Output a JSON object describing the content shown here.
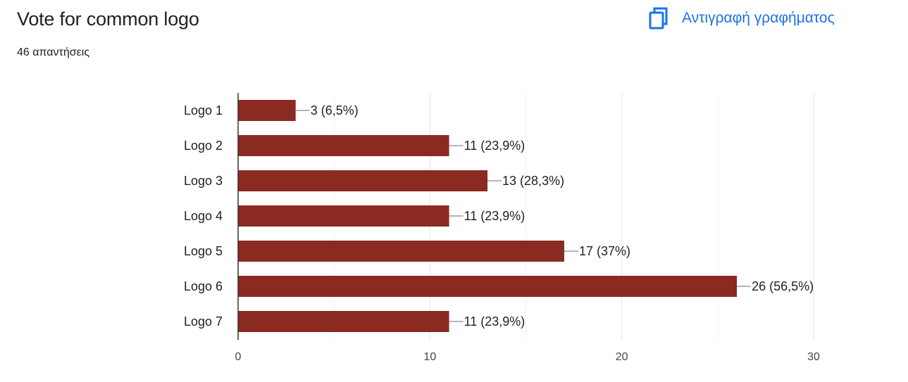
{
  "header": {
    "title": "Vote for common logo",
    "responses": "46 απαντήσεις",
    "copy_chart_label": "Αντιγραφή γραφήματος",
    "copy_icon": "copy-icon"
  },
  "colors": {
    "bar": "#8b2a20",
    "accent": "#1a73e8",
    "grid": "#e6e6e6",
    "axis": "#333333",
    "text": "#202124"
  },
  "chart_data": {
    "type": "bar",
    "orientation": "horizontal",
    "categories": [
      "Logo 1",
      "Logo 2",
      "Logo 3",
      "Logo 4",
      "Logo 5",
      "Logo 6",
      "Logo 7"
    ],
    "values": [
      3,
      11,
      13,
      11,
      17,
      26,
      11
    ],
    "data_labels": [
      "3 (6,5%)",
      "11 (23,9%)",
      "13 (28,3%)",
      "11 (23,9%)",
      "17 (37%)",
      "26 (56,5%)",
      "11 (23,9%)"
    ],
    "xlim": [
      0,
      30
    ],
    "xticks": [
      0,
      10,
      20,
      30
    ],
    "xlabel": "",
    "ylabel": "",
    "grid": true,
    "legend": "none"
  }
}
